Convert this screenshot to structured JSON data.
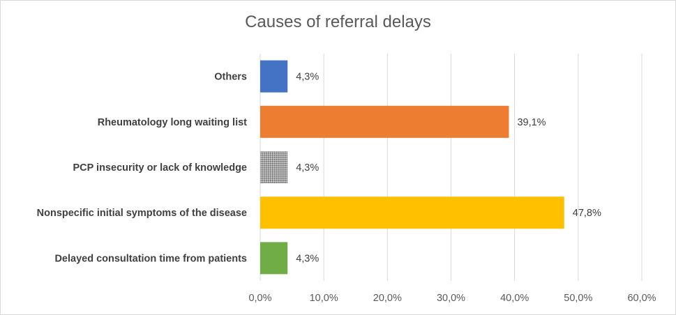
{
  "chart_data": {
    "type": "bar",
    "orientation": "horizontal",
    "title": "Causes of referral delays",
    "categories": [
      "Others",
      "Rheumatology long waiting list",
      "PCP insecurity or lack of knowledge",
      "Nonspecific initial symptoms of the disease",
      "Delayed consultation time from patients"
    ],
    "values": [
      4.3,
      39.1,
      4.3,
      47.8,
      4.3
    ],
    "value_labels": [
      "4,3%",
      "39,1%",
      "4,3%",
      "47,8%",
      "4,3%"
    ],
    "colors": [
      "#4472C4",
      "#ED7D31",
      "#A5A5A5",
      "#FFC000",
      "#70AD47"
    ],
    "patterned": [
      false,
      false,
      true,
      false,
      false
    ],
    "xlim": [
      0,
      60
    ],
    "ticks": [
      0,
      10,
      20,
      30,
      40,
      50,
      60
    ],
    "tick_labels": [
      "0,0%",
      "10,0%",
      "20,0%",
      "30,0%",
      "40,0%",
      "50,0%",
      "60,0%"
    ],
    "grid": true,
    "gridline_color": "#d9d9d9",
    "legend": "none"
  }
}
